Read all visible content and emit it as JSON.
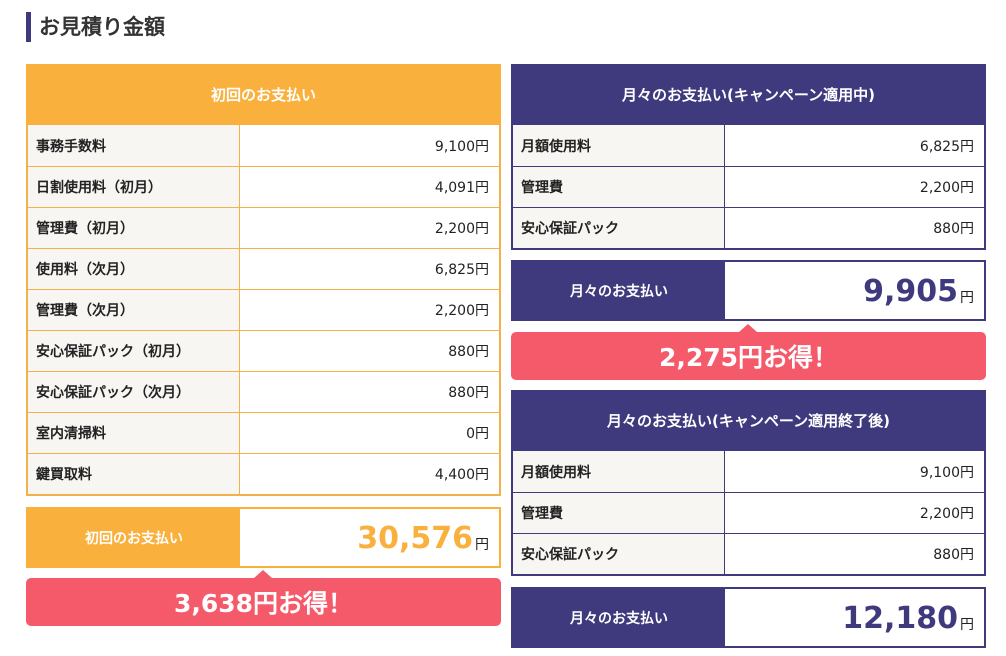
{
  "title": "お見積り金額",
  "initial": {
    "header": "初回のお支払い",
    "rows": [
      {
        "label": "事務手数料",
        "value": "9,100円"
      },
      {
        "label": "日割使用料（初月）",
        "value": "4,091円"
      },
      {
        "label": "管理費（初月）",
        "value": "2,200円"
      },
      {
        "label": "使用料（次月）",
        "value": "6,825円"
      },
      {
        "label": "管理費（次月）",
        "value": "2,200円"
      },
      {
        "label": "安心保証パック（初月）",
        "value": "880円"
      },
      {
        "label": "安心保証パック（次月）",
        "value": "880円"
      },
      {
        "label": "室内清掃料",
        "value": "0円"
      },
      {
        "label": "鍵買取料",
        "value": "4,400円"
      }
    ],
    "total_label": "初回のお支払い",
    "total": "30,576",
    "yen": "円",
    "savings": "3,638円お得！"
  },
  "monthly_campaign": {
    "header": "月々のお支払い(キャンペーン適用中)",
    "rows": [
      {
        "label": "月額使用料",
        "value": "6,825円"
      },
      {
        "label": "管理費",
        "value": "2,200円"
      },
      {
        "label": "安心保証パック",
        "value": "880円"
      }
    ],
    "total_label": "月々のお支払い",
    "total": "9,905",
    "yen": "円",
    "savings": "2,275円お得！"
  },
  "monthly_after": {
    "header": "月々のお支払い(キャンペーン適用終了後)",
    "rows": [
      {
        "label": "月額使用料",
        "value": "9,100円"
      },
      {
        "label": "管理費",
        "value": "2,200円"
      },
      {
        "label": "安心保証パック",
        "value": "880円"
      }
    ],
    "total_label": "月々のお支払い",
    "total": "12,180",
    "yen": "円"
  },
  "colors": {
    "orange": "#f9b03d",
    "navy": "#3f3a7d",
    "pink": "#f55a6b"
  }
}
